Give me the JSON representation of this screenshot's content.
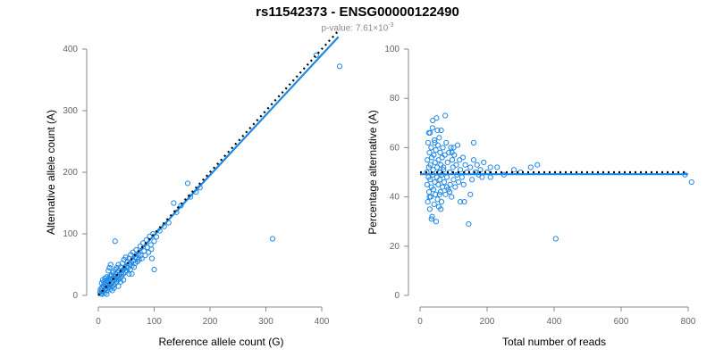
{
  "header": {
    "title": "rs11542373 - ENSG00000122490",
    "pvalue_prefix": "p-value: 7.61×10",
    "pvalue_exp": "-3"
  },
  "colors": {
    "points": "#1e88e5",
    "fit": "#1e88e5",
    "reference": "#000000",
    "axis": "#8a8a8a"
  },
  "chart_data": [
    {
      "type": "scatter",
      "xlabel": "Reference allele count (G)",
      "ylabel": "Alternative allele count (A)",
      "xlim": [
        0,
        440
      ],
      "ylim": [
        0,
        400
      ],
      "xticks": [
        0,
        100,
        200,
        300,
        400
      ],
      "yticks": [
        0,
        100,
        200,
        300,
        400
      ],
      "reference_line": {
        "style": "dotted",
        "x": [
          0,
          430
        ],
        "y": [
          0,
          430
        ]
      },
      "fit_line": {
        "style": "solid",
        "x": [
          0,
          430
        ],
        "y": [
          0,
          420
        ]
      },
      "points": [
        [
          3,
          5
        ],
        [
          4,
          10
        ],
        [
          5,
          3
        ],
        [
          6,
          12
        ],
        [
          6,
          20
        ],
        [
          7,
          8
        ],
        [
          8,
          15
        ],
        [
          8,
          25
        ],
        [
          9,
          6
        ],
        [
          10,
          14
        ],
        [
          10,
          22
        ],
        [
          11,
          9
        ],
        [
          12,
          18
        ],
        [
          12,
          28
        ],
        [
          13,
          11
        ],
        [
          14,
          24
        ],
        [
          15,
          16
        ],
        [
          15,
          30
        ],
        [
          16,
          8
        ],
        [
          17,
          20
        ],
        [
          18,
          13
        ],
        [
          18,
          27
        ],
        [
          19,
          22
        ],
        [
          20,
          17
        ],
        [
          21,
          10
        ],
        [
          21,
          31
        ],
        [
          22,
          25
        ],
        [
          23,
          19
        ],
        [
          24,
          14
        ],
        [
          24,
          33
        ],
        [
          25,
          28
        ],
        [
          26,
          22
        ],
        [
          27,
          16
        ],
        [
          27,
          38
        ],
        [
          28,
          30
        ],
        [
          29,
          25
        ],
        [
          30,
          19
        ],
        [
          30,
          42
        ],
        [
          31,
          34
        ],
        [
          32,
          28
        ],
        [
          33,
          22
        ],
        [
          33,
          45
        ],
        [
          34,
          37
        ],
        [
          35,
          30
        ],
        [
          36,
          26
        ],
        [
          36,
          50
        ],
        [
          37,
          40
        ],
        [
          38,
          33
        ],
        [
          39,
          28
        ],
        [
          40,
          46
        ],
        [
          41,
          36
        ],
        [
          42,
          31
        ],
        [
          43,
          52
        ],
        [
          44,
          41
        ],
        [
          45,
          35
        ],
        [
          46,
          58
        ],
        [
          47,
          44
        ],
        [
          48,
          38
        ],
        [
          49,
          62
        ],
        [
          50,
          47
        ],
        [
          51,
          40
        ],
        [
          52,
          55
        ],
        [
          53,
          45
        ],
        [
          55,
          60
        ],
        [
          56,
          50
        ],
        [
          57,
          42
        ],
        [
          58,
          66
        ],
        [
          59,
          53
        ],
        [
          60,
          48
        ],
        [
          62,
          70
        ],
        [
          63,
          56
        ],
        [
          64,
          46
        ],
        [
          65,
          62
        ],
        [
          66,
          52
        ],
        [
          68,
          74
        ],
        [
          69,
          60
        ],
        [
          70,
          55
        ],
        [
          72,
          68
        ],
        [
          73,
          58
        ],
        [
          75,
          80
        ],
        [
          76,
          65
        ],
        [
          78,
          60
        ],
        [
          80,
          85
        ],
        [
          82,
          72
        ],
        [
          84,
          65
        ],
        [
          86,
          90
        ],
        [
          88,
          78
        ],
        [
          90,
          70
        ],
        [
          92,
          96
        ],
        [
          94,
          82
        ],
        [
          95,
          75
        ],
        [
          96,
          60
        ],
        [
          98,
          100
        ],
        [
          100,
          88
        ],
        [
          100,
          42
        ],
        [
          104,
          95
        ],
        [
          110,
          105
        ],
        [
          118,
          112
        ],
        [
          126,
          118
        ],
        [
          135,
          150
        ],
        [
          140,
          135
        ],
        [
          148,
          146
        ],
        [
          160,
          182
        ],
        [
          165,
          160
        ],
        [
          175,
          168
        ],
        [
          182,
          175
        ],
        [
          30,
          88
        ],
        [
          40,
          22
        ],
        [
          55,
          35
        ],
        [
          12,
          4
        ],
        [
          18,
          40
        ],
        [
          25,
          8
        ],
        [
          36,
          15
        ],
        [
          7,
          2
        ],
        [
          45,
          25
        ],
        [
          60,
          35
        ],
        [
          20,
          45
        ],
        [
          15,
          2
        ],
        [
          22,
          50
        ],
        [
          28,
          12
        ],
        [
          390,
          390
        ],
        [
          432,
          372
        ],
        [
          312,
          92
        ]
      ]
    },
    {
      "type": "scatter",
      "xlabel": "Total number of reads",
      "ylabel": "Percentage alternative (A)",
      "xlim": [
        0,
        800
      ],
      "ylim": [
        0,
        100
      ],
      "xticks": [
        0,
        200,
        400,
        600,
        800
      ],
      "yticks": [
        0,
        20,
        40,
        60,
        80,
        100
      ],
      "reference_line": {
        "style": "dotted",
        "x": [
          0,
          800
        ],
        "y": [
          50,
          50
        ]
      },
      "fit_line": {
        "style": "solid",
        "x": [
          0,
          800
        ],
        "y": [
          49.2,
          49.2
        ]
      },
      "points": [
        [
          20,
          50
        ],
        [
          21,
          45
        ],
        [
          22,
          55
        ],
        [
          23,
          38
        ],
        [
          24,
          62
        ],
        [
          25,
          48
        ],
        [
          26,
          52
        ],
        [
          27,
          42
        ],
        [
          28,
          58
        ],
        [
          29,
          35
        ],
        [
          30,
          66
        ],
        [
          30,
          47
        ],
        [
          31,
          53
        ],
        [
          32,
          40
        ],
        [
          33,
          60
        ],
        [
          34,
          44
        ],
        [
          35,
          56
        ],
        [
          36,
          32
        ],
        [
          37,
          68
        ],
        [
          38,
          49
        ],
        [
          39,
          51
        ],
        [
          40,
          43
        ],
        [
          41,
          57
        ],
        [
          42,
          37
        ],
        [
          43,
          63
        ],
        [
          44,
          46
        ],
        [
          45,
          54
        ],
        [
          46,
          41
        ],
        [
          47,
          59
        ],
        [
          48,
          30
        ],
        [
          49,
          72
        ],
        [
          50,
          48
        ],
        [
          51,
          52
        ],
        [
          52,
          39
        ],
        [
          53,
          61
        ],
        [
          54,
          45
        ],
        [
          55,
          55
        ],
        [
          56,
          36
        ],
        [
          57,
          64
        ],
        [
          58,
          50
        ],
        [
          59,
          47
        ],
        [
          60,
          58
        ],
        [
          61,
          42
        ],
        [
          62,
          53
        ],
        [
          63,
          67
        ],
        [
          64,
          38
        ],
        [
          65,
          49
        ],
        [
          66,
          56
        ],
        [
          67,
          44
        ],
        [
          68,
          60
        ],
        [
          70,
          51
        ],
        [
          72,
          46
        ],
        [
          74,
          57
        ],
        [
          76,
          41
        ],
        [
          78,
          62
        ],
        [
          80,
          48
        ],
        [
          82,
          54
        ],
        [
          84,
          43
        ],
        [
          86,
          58
        ],
        [
          88,
          50
        ],
        [
          90,
          45
        ],
        [
          92,
          60
        ],
        [
          94,
          40
        ],
        [
          96,
          55
        ],
        [
          98,
          52
        ],
        [
          100,
          47
        ],
        [
          102,
          57
        ],
        [
          105,
          44
        ],
        [
          108,
          53
        ],
        [
          110,
          49
        ],
        [
          112,
          61
        ],
        [
          115,
          46
        ],
        [
          118,
          55
        ],
        [
          120,
          51
        ],
        [
          125,
          48
        ],
        [
          128,
          56
        ],
        [
          130,
          45
        ],
        [
          135,
          53
        ],
        [
          140,
          50
        ],
        [
          145,
          29
        ],
        [
          150,
          52
        ],
        [
          155,
          47
        ],
        [
          160,
          55
        ],
        [
          165,
          50
        ],
        [
          170,
          53
        ],
        [
          175,
          49
        ],
        [
          180,
          51
        ],
        [
          190,
          54
        ],
        [
          200,
          50
        ],
        [
          210,
          48
        ],
        [
          230,
          52
        ],
        [
          250,
          49
        ],
        [
          280,
          51
        ],
        [
          300,
          50
        ],
        [
          330,
          52
        ],
        [
          350,
          53
        ],
        [
          405,
          23
        ],
        [
          790,
          49
        ],
        [
          810,
          46
        ],
        [
          34,
          31
        ],
        [
          28,
          40
        ],
        [
          44,
          62
        ],
        [
          62,
          35
        ],
        [
          75,
          73
        ],
        [
          58,
          41
        ],
        [
          88,
          42
        ],
        [
          100,
          60
        ],
        [
          120,
          38
        ],
        [
          132,
          38
        ],
        [
          160,
          62
        ],
        [
          26,
          66
        ],
        [
          38,
          71
        ],
        [
          52,
          67
        ],
        [
          70,
          52
        ],
        [
          95,
          58
        ],
        [
          210,
          52
        ],
        [
          60,
          50
        ],
        [
          80,
          44
        ],
        [
          150,
          41
        ],
        [
          185,
          48
        ]
      ]
    }
  ]
}
